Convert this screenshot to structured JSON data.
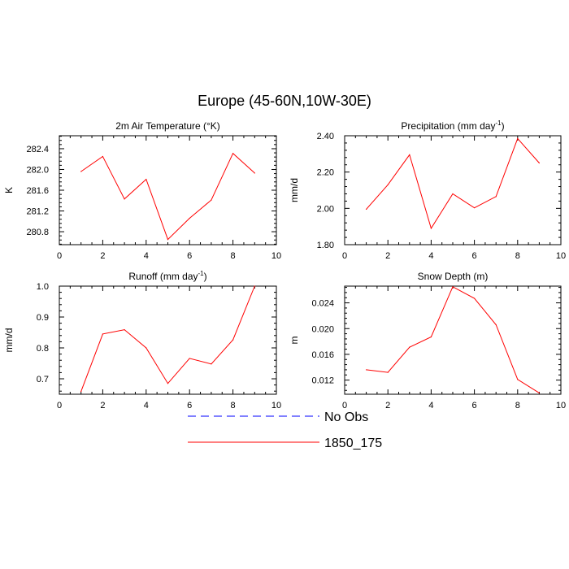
{
  "figure": {
    "title": "Europe (45-60N,10W-30E)"
  },
  "legend": {
    "placement": "bottom-center",
    "entries": [
      {
        "label": "No Obs",
        "color": "#0000ff",
        "style": "dashed"
      },
      {
        "label": "1850_175",
        "color": "#ff0000",
        "style": "solid"
      }
    ]
  },
  "chart_data": [
    {
      "type": "line",
      "title": "2m Air Temperature (°K)",
      "xlabel": "",
      "ylabel": "K",
      "xlim": [
        0,
        10
      ],
      "ylim": [
        280.55,
        282.65
      ],
      "xticks": [
        0,
        2,
        4,
        6,
        8,
        10
      ],
      "yticks": [
        280.8,
        281.2,
        281.6,
        282.0,
        282.4
      ],
      "ytick_labels": [
        "280.8",
        "281.2",
        "281.6",
        "282.0",
        "282.4"
      ],
      "series": [
        {
          "name": "1850_175",
          "color": "#ff0000",
          "x": [
            1,
            2,
            3,
            4,
            5,
            6,
            7,
            8,
            9
          ],
          "y": [
            281.96,
            282.25,
            281.43,
            281.81,
            280.65,
            281.06,
            281.41,
            282.31,
            281.93
          ]
        }
      ]
    },
    {
      "type": "line",
      "title": "Precipitation (mm day-1)",
      "title_main": "Precipitation (mm day",
      "title_sup": "-1",
      "title_end": ")",
      "xlabel": "",
      "ylabel": "mm/d",
      "xlim": [
        0,
        10
      ],
      "ylim": [
        1.8,
        2.4
      ],
      "xticks": [
        0,
        2,
        4,
        6,
        8,
        10
      ],
      "yticks": [
        1.8,
        2.0,
        2.2,
        2.4
      ],
      "ytick_labels": [
        "1.80",
        "2.00",
        "2.20",
        "2.40"
      ],
      "series": [
        {
          "name": "1850_175",
          "color": "#ff0000",
          "x": [
            1,
            2,
            3,
            4,
            5,
            6,
            7,
            8,
            9
          ],
          "y": [
            1.995,
            2.13,
            2.295,
            1.89,
            2.08,
            2.003,
            2.065,
            2.385,
            2.25
          ]
        }
      ]
    },
    {
      "type": "line",
      "title": "Runoff (mm day-1)",
      "title_main": "Runoff (mm day",
      "title_sup": "-1",
      "title_end": ")",
      "xlabel": "",
      "ylabel": "mm/d",
      "xlim": [
        0,
        10
      ],
      "ylim": [
        0.65,
        1.0
      ],
      "xticks": [
        0,
        2,
        4,
        6,
        8,
        10
      ],
      "yticks": [
        0.7,
        0.8,
        0.9,
        1.0
      ],
      "ytick_labels": [
        "0.7",
        "0.8",
        "0.9",
        "1.0"
      ],
      "series": [
        {
          "name": "1850_175",
          "color": "#ff0000",
          "x": [
            1,
            2,
            3,
            4,
            5,
            6,
            7,
            8,
            9
          ],
          "y": [
            0.659,
            0.845,
            0.859,
            0.8,
            0.685,
            0.766,
            0.748,
            0.826,
            1.0
          ]
        }
      ]
    },
    {
      "type": "line",
      "title": "Snow Depth (m)",
      "xlabel": "",
      "ylabel": "m",
      "xlim": [
        0,
        10
      ],
      "ylim": [
        0.0098,
        0.0266
      ],
      "xticks": [
        0,
        2,
        4,
        6,
        8,
        10
      ],
      "yticks": [
        0.012,
        0.016,
        0.02,
        0.024
      ],
      "ytick_labels": [
        "0.012",
        "0.016",
        "0.020",
        "0.024"
      ],
      "series": [
        {
          "name": "1850_175",
          "color": "#ff0000",
          "x": [
            1,
            2,
            3,
            4,
            5,
            6,
            7,
            8,
            9
          ],
          "y": [
            0.0136,
            0.0132,
            0.0171,
            0.0187,
            0.0265,
            0.0247,
            0.0206,
            0.0121,
            0.01
          ]
        }
      ]
    }
  ]
}
